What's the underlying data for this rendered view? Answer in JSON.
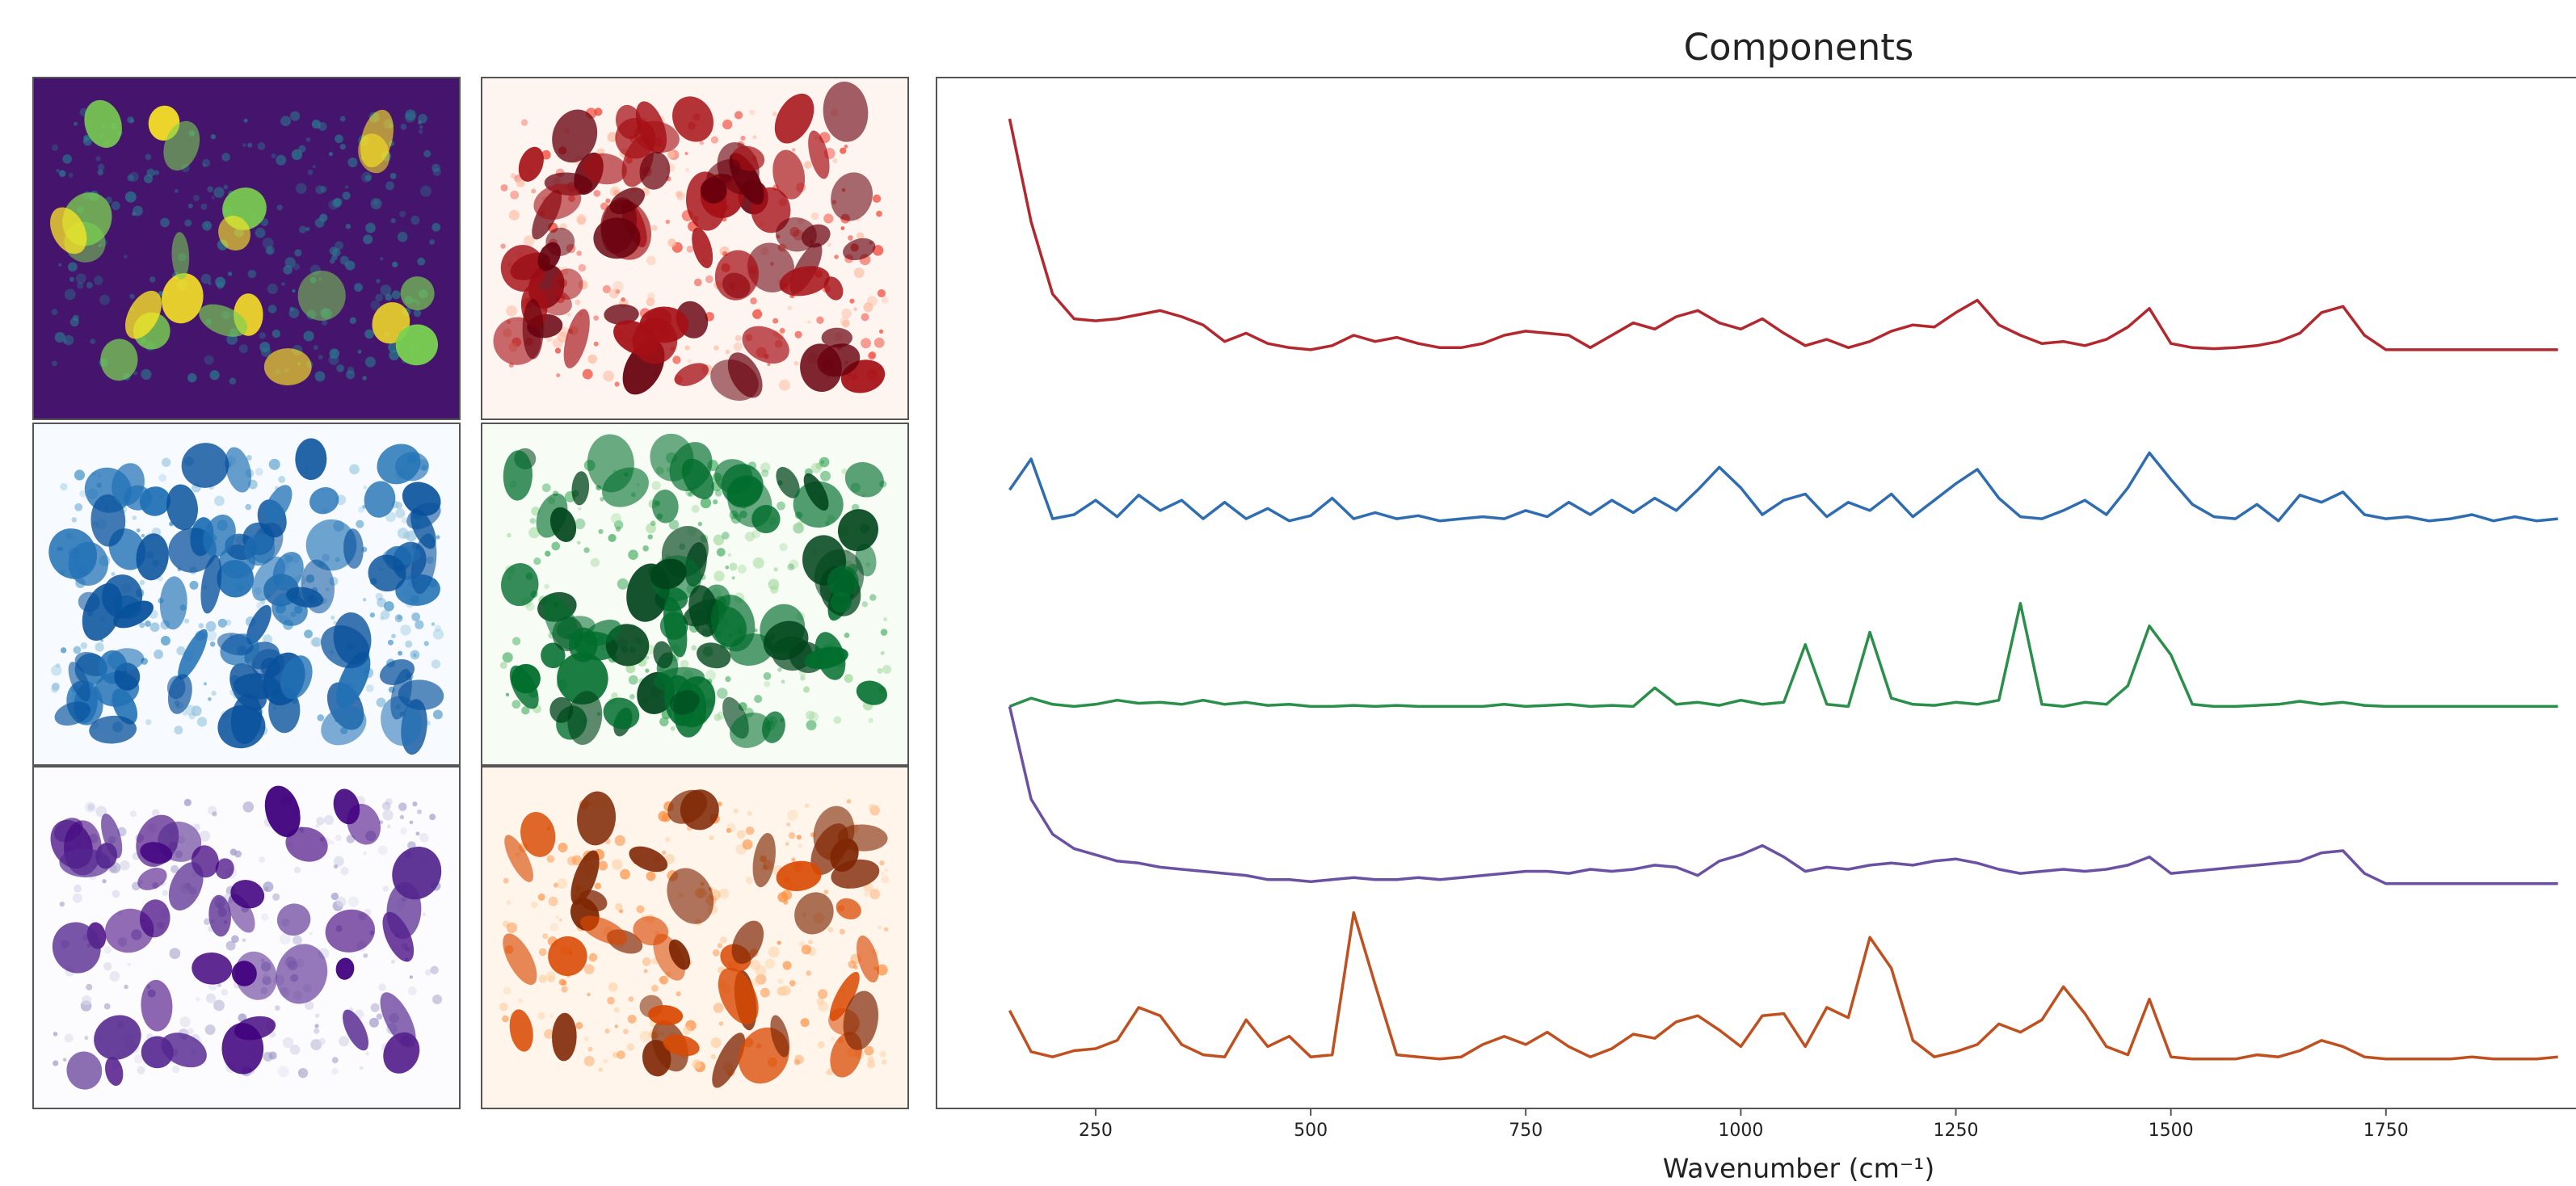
{
  "chart_data": {
    "type": "line",
    "title": "Components",
    "xlabel": "Wavenumber (cm⁻¹)",
    "x": [
      150,
      175,
      200,
      225,
      250,
      275,
      300,
      325,
      350,
      375,
      400,
      425,
      450,
      475,
      500,
      525,
      550,
      575,
      600,
      625,
      650,
      675,
      700,
      725,
      750,
      775,
      800,
      825,
      850,
      875,
      900,
      925,
      950,
      975,
      1000,
      1025,
      1050,
      1075,
      1100,
      1125,
      1150,
      1175,
      1200,
      1225,
      1250,
      1275,
      1300,
      1325,
      1350,
      1375,
      1400,
      1425,
      1450,
      1475,
      1500,
      1525,
      1550,
      1575,
      1600,
      1625,
      1650,
      1675,
      1700,
      1725,
      1750,
      1775,
      1800,
      1825,
      1850,
      1875,
      1900,
      1925,
      1950
    ],
    "xlim": [
      65,
      1970
    ],
    "xticks": [
      250,
      500,
      750,
      1000,
      1250,
      1500,
      1750
    ],
    "ylim": [
      0,
      10
    ],
    "series": [
      {
        "color": "#b2282e",
        "values": [
          9.6,
          8.6,
          7.9,
          7.66,
          7.64,
          7.66,
          7.7,
          7.74,
          7.68,
          7.6,
          7.44,
          7.52,
          7.42,
          7.38,
          7.36,
          7.4,
          7.5,
          7.44,
          7.48,
          7.42,
          7.38,
          7.38,
          7.42,
          7.5,
          7.54,
          7.52,
          7.5,
          7.38,
          7.5,
          7.62,
          7.56,
          7.68,
          7.74,
          7.62,
          7.56,
          7.66,
          7.52,
          7.4,
          7.46,
          7.38,
          7.44,
          7.54,
          7.6,
          7.58,
          7.72,
          7.84,
          7.6,
          7.5,
          7.42,
          7.44,
          7.4,
          7.46,
          7.58,
          7.76,
          7.42,
          7.38,
          7.37,
          7.38,
          7.4,
          7.44,
          7.52,
          7.72,
          7.78,
          7.5,
          7.36,
          7.36,
          7.36,
          7.36,
          7.36,
          7.36,
          7.36,
          7.36,
          7.36
        ]
      },
      {
        "color": "#2f6db0",
        "values": [
          6.0,
          6.3,
          5.72,
          5.76,
          5.9,
          5.74,
          5.95,
          5.8,
          5.9,
          5.72,
          5.88,
          5.72,
          5.82,
          5.7,
          5.75,
          5.92,
          5.72,
          5.78,
          5.72,
          5.75,
          5.7,
          5.72,
          5.74,
          5.72,
          5.8,
          5.74,
          5.88,
          5.76,
          5.9,
          5.78,
          5.92,
          5.8,
          6.0,
          6.22,
          6.02,
          5.76,
          5.9,
          5.96,
          5.74,
          5.88,
          5.8,
          5.96,
          5.74,
          5.9,
          6.06,
          6.2,
          5.92,
          5.74,
          5.72,
          5.8,
          5.9,
          5.76,
          6.02,
          6.36,
          6.1,
          5.86,
          5.74,
          5.72,
          5.86,
          5.7,
          5.95,
          5.88,
          5.98,
          5.76,
          5.72,
          5.74,
          5.7,
          5.72,
          5.76,
          5.7,
          5.74,
          5.7,
          5.72
        ]
      },
      {
        "color": "#2a8f4a",
        "values": [
          3.9,
          3.98,
          3.92,
          3.9,
          3.92,
          3.96,
          3.93,
          3.94,
          3.92,
          3.96,
          3.92,
          3.94,
          3.91,
          3.92,
          3.9,
          3.9,
          3.91,
          3.9,
          3.91,
          3.9,
          3.9,
          3.9,
          3.9,
          3.92,
          3.9,
          3.91,
          3.92,
          3.9,
          3.91,
          3.9,
          4.08,
          3.92,
          3.94,
          3.91,
          3.96,
          3.92,
          3.94,
          4.5,
          3.92,
          3.9,
          4.62,
          3.98,
          3.92,
          3.91,
          3.94,
          3.92,
          3.96,
          4.9,
          3.92,
          3.9,
          3.94,
          3.92,
          4.1,
          4.68,
          4.4,
          3.92,
          3.9,
          3.9,
          3.91,
          3.92,
          3.95,
          3.92,
          3.94,
          3.91,
          3.9,
          3.9,
          3.9,
          3.9,
          3.9,
          3.9,
          3.9,
          3.9,
          3.9
        ]
      },
      {
        "color": "#6a51a3",
        "values": [
          3.9,
          3.0,
          2.66,
          2.52,
          2.46,
          2.4,
          2.38,
          2.34,
          2.32,
          2.3,
          2.28,
          2.26,
          2.22,
          2.22,
          2.2,
          2.22,
          2.24,
          2.22,
          2.22,
          2.24,
          2.22,
          2.24,
          2.26,
          2.28,
          2.3,
          2.3,
          2.28,
          2.32,
          2.3,
          2.32,
          2.36,
          2.34,
          2.26,
          2.4,
          2.46,
          2.55,
          2.44,
          2.3,
          2.34,
          2.32,
          2.36,
          2.38,
          2.36,
          2.4,
          2.42,
          2.38,
          2.32,
          2.28,
          2.3,
          2.32,
          2.3,
          2.32,
          2.36,
          2.44,
          2.28,
          2.3,
          2.32,
          2.34,
          2.36,
          2.38,
          2.4,
          2.48,
          2.5,
          2.28,
          2.18,
          2.18,
          2.18,
          2.18,
          2.18,
          2.18,
          2.18,
          2.18,
          2.18
        ]
      },
      {
        "color": "#c0501f",
        "values": [
          0.95,
          0.55,
          0.5,
          0.56,
          0.58,
          0.66,
          0.98,
          0.9,
          0.62,
          0.52,
          0.5,
          0.86,
          0.6,
          0.7,
          0.5,
          0.52,
          1.9,
          1.2,
          0.52,
          0.5,
          0.48,
          0.5,
          0.62,
          0.7,
          0.62,
          0.74,
          0.6,
          0.5,
          0.58,
          0.72,
          0.68,
          0.84,
          0.9,
          0.76,
          0.6,
          0.9,
          0.92,
          0.6,
          0.98,
          0.88,
          1.66,
          1.36,
          0.66,
          0.5,
          0.55,
          0.62,
          0.82,
          0.74,
          0.86,
          1.18,
          0.92,
          0.6,
          0.52,
          1.06,
          0.5,
          0.48,
          0.48,
          0.48,
          0.52,
          0.5,
          0.56,
          0.66,
          0.6,
          0.5,
          0.48,
          0.48,
          0.48,
          0.48,
          0.5,
          0.48,
          0.48,
          0.48,
          0.5
        ]
      }
    ]
  }
}
